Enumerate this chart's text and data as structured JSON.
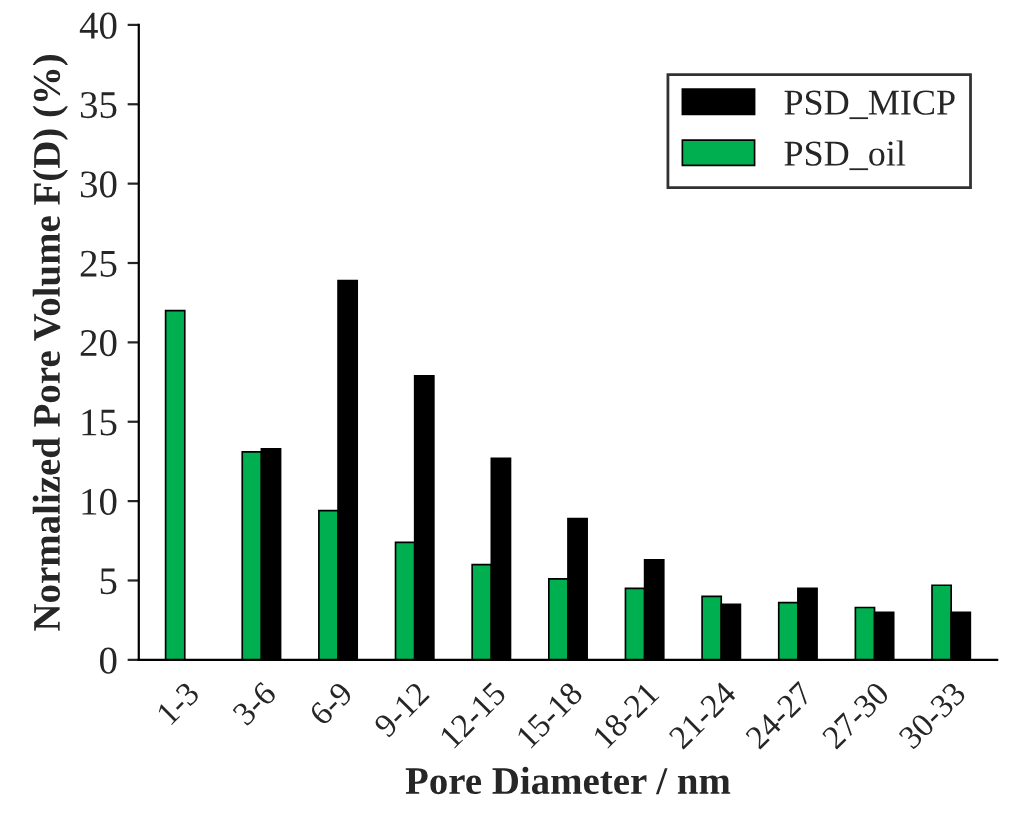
{
  "chart_data": {
    "type": "bar",
    "xlabel": "Pore Diameter / nm",
    "ylabel": "Normalized Pore Volume F(D) (%)",
    "categories": [
      "1-3",
      "3-6",
      "6-9",
      "9-12",
      "12-15",
      "15-18",
      "18-21",
      "21-24",
      "24-27",
      "27-30",
      "30-33"
    ],
    "series": [
      {
        "name": "PSD_oil",
        "color": "#00b050",
        "values": [
          22,
          13.1,
          9.4,
          7.4,
          6.0,
          5.1,
          4.5,
          4.0,
          3.6,
          3.3,
          4.7
        ]
      },
      {
        "name": "PSD_MICP",
        "color": "#000000",
        "values": [
          0,
          13.3,
          23.9,
          17.9,
          12.7,
          8.9,
          6.3,
          3.5,
          4.5,
          3.0,
          3.0
        ]
      }
    ],
    "ylim": [
      0,
      40
    ],
    "yticks": [
      0,
      5,
      10,
      15,
      20,
      25,
      30,
      35,
      40
    ],
    "legend": "top right",
    "grid": false
  }
}
